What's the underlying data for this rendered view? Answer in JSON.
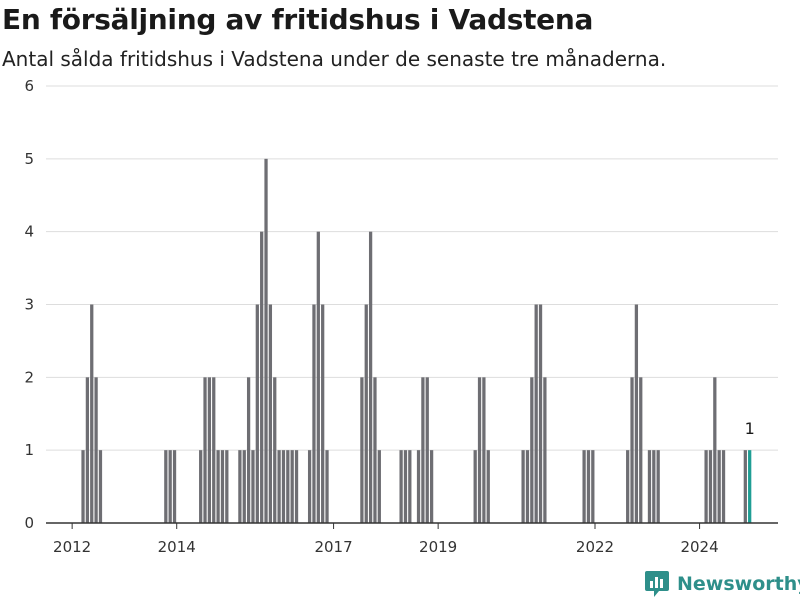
{
  "header": {
    "title": "En försäljning av fritidshus i Vadstena",
    "subtitle": "Antal sålda fritidshus i Vadstena under de senaste tre månaderna."
  },
  "brand": {
    "name": "Newsworthy"
  },
  "colors": {
    "bar": "#6e6e73",
    "highlight": "#1f9e94",
    "grid": "#dddddd",
    "axis": "#333333",
    "brand": "#2e8f8a"
  },
  "chart_data": {
    "type": "bar",
    "title": "En försäljning av fritidshus i Vadstena",
    "subtitle": "Antal sålda fritidshus i Vadstena under de senaste tre månaderna.",
    "xlabel": "",
    "ylabel": "",
    "ylim": [
      0,
      6
    ],
    "yticks": [
      "0",
      "1",
      "2",
      "3",
      "4",
      "5",
      "6"
    ],
    "xlim": [
      "2011-07",
      "2025-07"
    ],
    "xticks": [
      {
        "label": "2012",
        "month": "2012-01"
      },
      {
        "label": "2014",
        "month": "2014-01"
      },
      {
        "label": "2017",
        "month": "2017-01"
      },
      {
        "label": "2019",
        "month": "2019-01"
      },
      {
        "label": "2022",
        "month": "2022-01"
      },
      {
        "label": "2024",
        "month": "2024-01"
      }
    ],
    "grid": true,
    "legend": "none",
    "highlight": {
      "month": "2024-12",
      "value": 1,
      "label": "1"
    },
    "values": [
      {
        "month": "2012-03",
        "value": 1
      },
      {
        "month": "2012-04",
        "value": 2
      },
      {
        "month": "2012-05",
        "value": 3
      },
      {
        "month": "2012-06",
        "value": 2
      },
      {
        "month": "2012-07",
        "value": 1
      },
      {
        "month": "2013-10",
        "value": 1
      },
      {
        "month": "2013-11",
        "value": 1
      },
      {
        "month": "2013-12",
        "value": 1
      },
      {
        "month": "2014-06",
        "value": 1
      },
      {
        "month": "2014-07",
        "value": 2
      },
      {
        "month": "2014-08",
        "value": 2
      },
      {
        "month": "2014-09",
        "value": 2
      },
      {
        "month": "2014-10",
        "value": 1
      },
      {
        "month": "2014-11",
        "value": 1
      },
      {
        "month": "2014-12",
        "value": 1
      },
      {
        "month": "2015-03",
        "value": 1
      },
      {
        "month": "2015-04",
        "value": 1
      },
      {
        "month": "2015-05",
        "value": 2
      },
      {
        "month": "2015-06",
        "value": 1
      },
      {
        "month": "2015-07",
        "value": 3
      },
      {
        "month": "2015-08",
        "value": 4
      },
      {
        "month": "2015-09",
        "value": 5
      },
      {
        "month": "2015-10",
        "value": 3
      },
      {
        "month": "2015-11",
        "value": 2
      },
      {
        "month": "2015-12",
        "value": 1
      },
      {
        "month": "2016-01",
        "value": 1
      },
      {
        "month": "2016-02",
        "value": 1
      },
      {
        "month": "2016-03",
        "value": 1
      },
      {
        "month": "2016-04",
        "value": 1
      },
      {
        "month": "2016-07",
        "value": 1
      },
      {
        "month": "2016-08",
        "value": 3
      },
      {
        "month": "2016-09",
        "value": 4
      },
      {
        "month": "2016-10",
        "value": 3
      },
      {
        "month": "2016-11",
        "value": 1
      },
      {
        "month": "2017-07",
        "value": 2
      },
      {
        "month": "2017-08",
        "value": 3
      },
      {
        "month": "2017-09",
        "value": 4
      },
      {
        "month": "2017-10",
        "value": 2
      },
      {
        "month": "2017-11",
        "value": 1
      },
      {
        "month": "2018-04",
        "value": 1
      },
      {
        "month": "2018-05",
        "value": 1
      },
      {
        "month": "2018-06",
        "value": 1
      },
      {
        "month": "2018-08",
        "value": 1
      },
      {
        "month": "2018-09",
        "value": 2
      },
      {
        "month": "2018-10",
        "value": 2
      },
      {
        "month": "2018-11",
        "value": 1
      },
      {
        "month": "2019-09",
        "value": 1
      },
      {
        "month": "2019-10",
        "value": 2
      },
      {
        "month": "2019-11",
        "value": 2
      },
      {
        "month": "2019-12",
        "value": 1
      },
      {
        "month": "2020-08",
        "value": 1
      },
      {
        "month": "2020-09",
        "value": 1
      },
      {
        "month": "2020-10",
        "value": 2
      },
      {
        "month": "2020-11",
        "value": 3
      },
      {
        "month": "2020-12",
        "value": 3
      },
      {
        "month": "2021-01",
        "value": 2
      },
      {
        "month": "2021-10",
        "value": 1
      },
      {
        "month": "2021-11",
        "value": 1
      },
      {
        "month": "2021-12",
        "value": 1
      },
      {
        "month": "2022-08",
        "value": 1
      },
      {
        "month": "2022-09",
        "value": 2
      },
      {
        "month": "2022-10",
        "value": 3
      },
      {
        "month": "2022-11",
        "value": 2
      },
      {
        "month": "2023-01",
        "value": 1
      },
      {
        "month": "2023-02",
        "value": 1
      },
      {
        "month": "2023-03",
        "value": 1
      },
      {
        "month": "2024-02",
        "value": 1
      },
      {
        "month": "2024-03",
        "value": 1
      },
      {
        "month": "2024-04",
        "value": 2
      },
      {
        "month": "2024-05",
        "value": 1
      },
      {
        "month": "2024-06",
        "value": 1
      },
      {
        "month": "2024-11",
        "value": 1
      },
      {
        "month": "2024-12",
        "value": 1
      }
    ]
  }
}
